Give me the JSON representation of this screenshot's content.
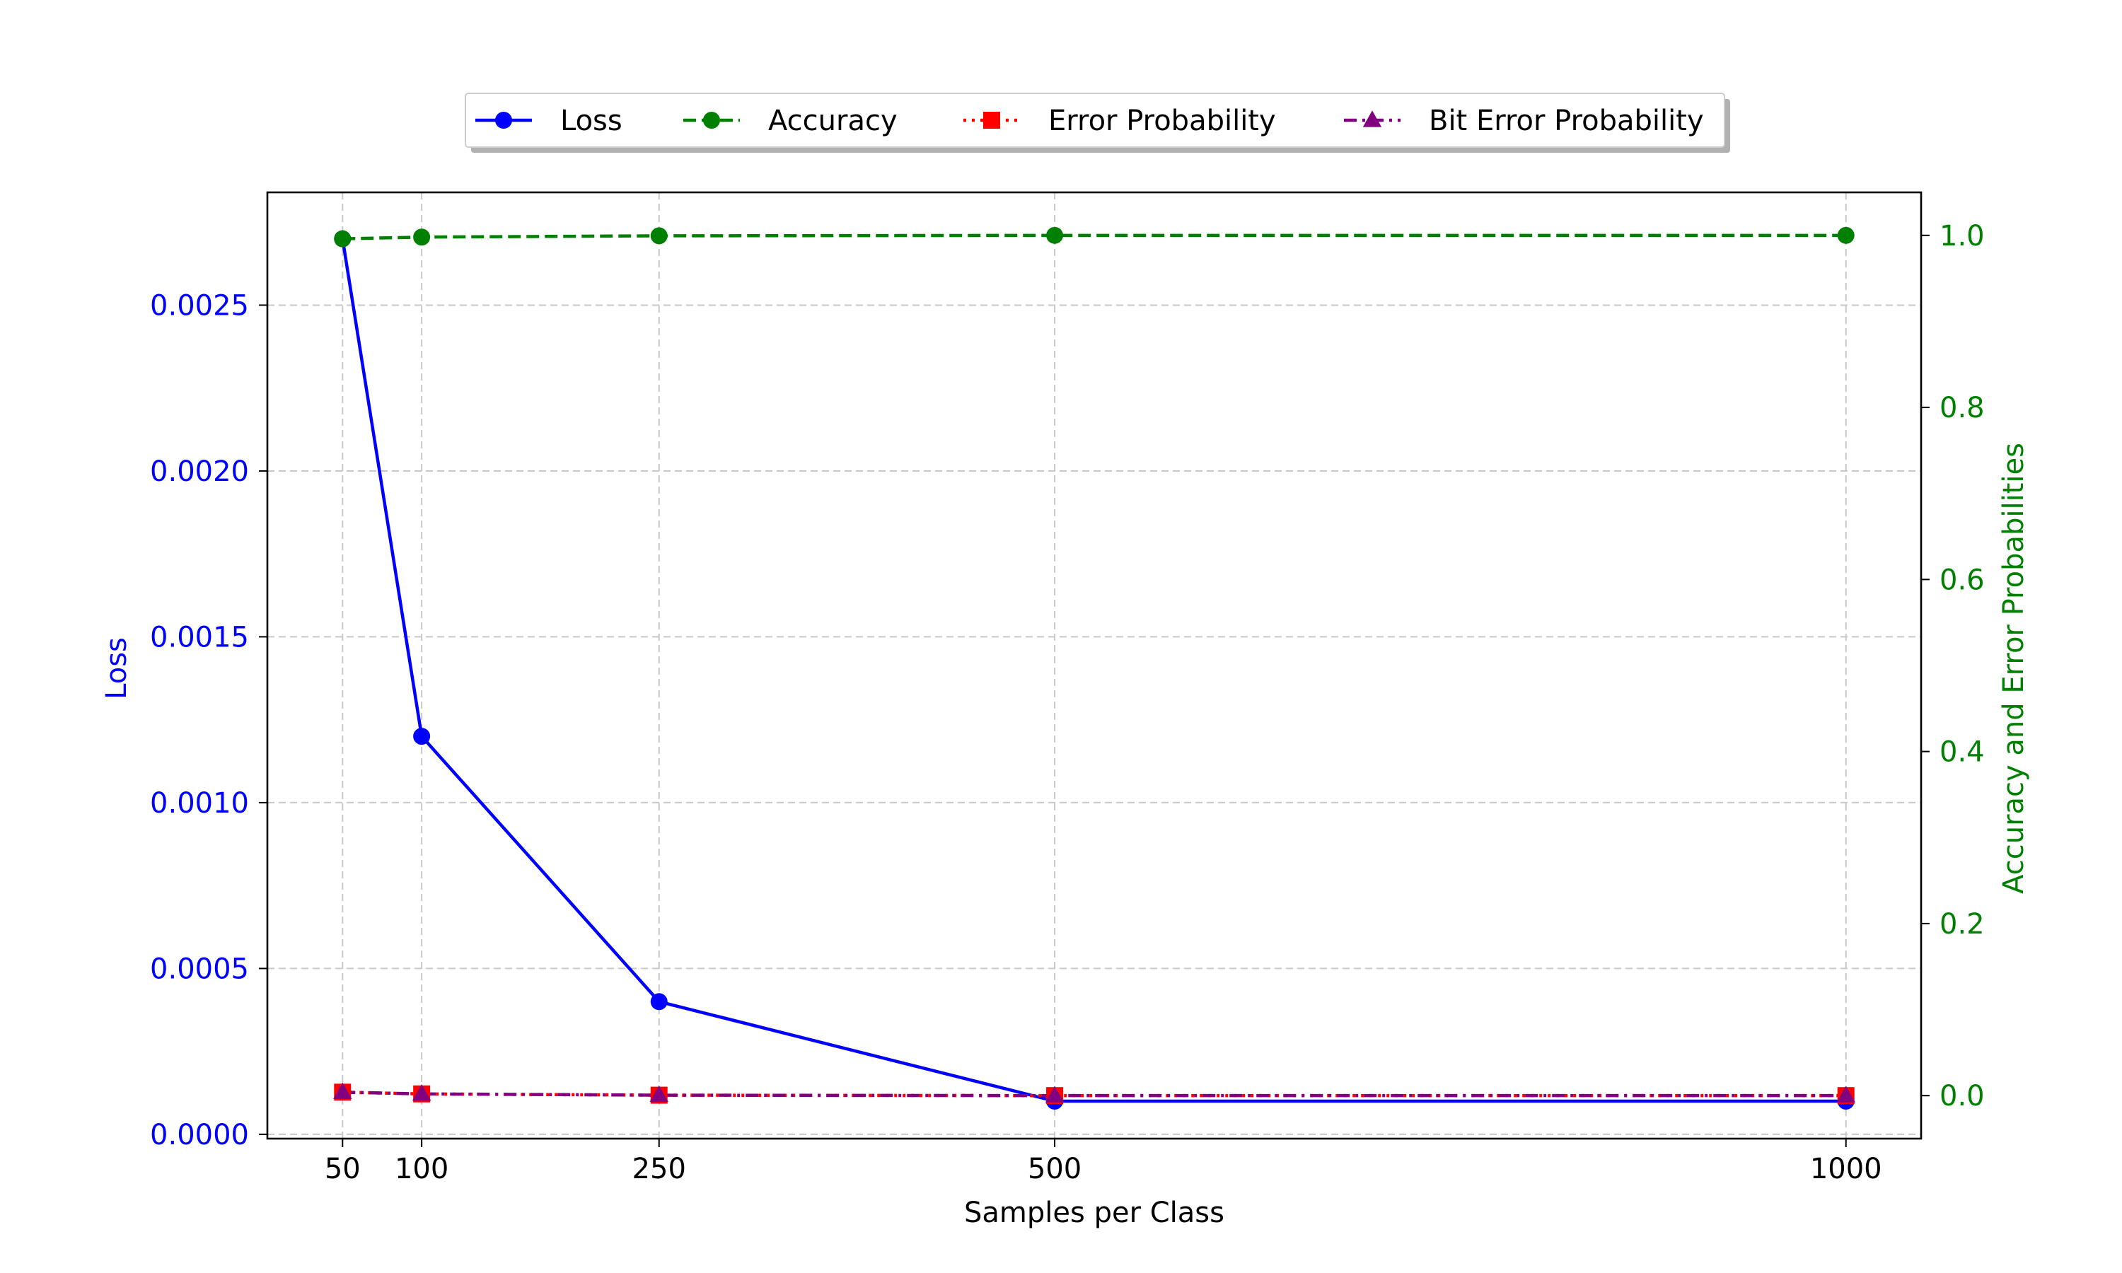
{
  "chart_data": {
    "type": "line",
    "x": [
      50,
      100,
      250,
      500,
      1000
    ],
    "xlabel": "Samples per Class",
    "xticks": [
      "50",
      "100",
      "250",
      "500",
      "1000"
    ],
    "xlim": [
      2.5,
      1047.5
    ],
    "ylabel_left": "Loss",
    "ylim_left": [
      -1.3e-05,
      0.00284
    ],
    "yticks_left": [
      "0.0000",
      "0.0005",
      "0.0010",
      "0.0015",
      "0.0020",
      "0.0025"
    ],
    "ylabel_right": "Accuracy and Error Probabilities",
    "ylim_right": [
      -0.05,
      1.05
    ],
    "yticks_right": [
      "0.0",
      "0.2",
      "0.4",
      "0.6",
      "0.8",
      "1.0"
    ],
    "grid": true,
    "legend_position": "top-center",
    "series": [
      {
        "name": "Loss",
        "axis": "left",
        "color": "#0000ff",
        "style": "solid",
        "marker": "circle",
        "values": [
          0.0027,
          0.0012,
          0.0004,
          0.0001,
          0.0001
        ]
      },
      {
        "name": "Accuracy",
        "axis": "right",
        "color": "#008000",
        "style": "dashed",
        "marker": "circle",
        "values": [
          0.996,
          0.998,
          0.9995,
          1.0,
          1.0
        ]
      },
      {
        "name": "Error Probability",
        "axis": "right",
        "color": "#ff0000",
        "style": "dotted",
        "marker": "square",
        "values": [
          0.004,
          0.002,
          0.0005,
          0.0,
          0.0
        ]
      },
      {
        "name": "Bit Error Probability",
        "axis": "right",
        "color": "#800080",
        "style": "dashdot",
        "marker": "triangle",
        "values": [
          0.004,
          0.002,
          0.0005,
          0.0,
          0.0
        ]
      }
    ]
  }
}
